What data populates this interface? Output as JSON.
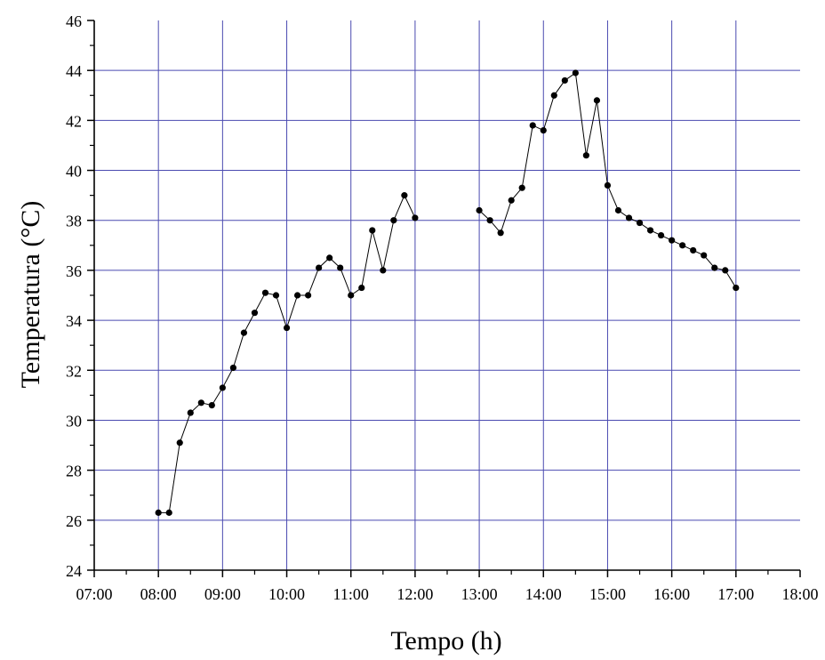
{
  "chart_data": {
    "type": "line",
    "xlabel": "Tempo (h)",
    "ylabel": "Temperatura (°C)",
    "xlim": [
      "07:00",
      "18:00"
    ],
    "ylim": [
      24,
      46
    ],
    "x_ticks": [
      "07:00",
      "08:00",
      "09:00",
      "10:00",
      "11:00",
      "12:00",
      "13:00",
      "14:00",
      "15:00",
      "16:00",
      "17:00",
      "18:00"
    ],
    "y_ticks": [
      "24",
      "26",
      "28",
      "30",
      "32",
      "34",
      "36",
      "38",
      "40",
      "42",
      "44",
      "46"
    ],
    "grid": true,
    "grid_color": "#4a4ab0",
    "line_color": "#000000",
    "marker": "filled-circle",
    "series": [
      {
        "segments": [
          [
            [
              "08:00",
              26.3
            ],
            [
              "08:10",
              26.3
            ],
            [
              "08:20",
              29.1
            ],
            [
              "08:30",
              30.3
            ],
            [
              "08:40",
              30.7
            ],
            [
              "08:50",
              30.6
            ],
            [
              "09:00",
              31.3
            ],
            [
              "09:10",
              32.1
            ],
            [
              "09:20",
              33.5
            ],
            [
              "09:30",
              34.3
            ],
            [
              "09:40",
              35.1
            ],
            [
              "09:50",
              35.0
            ],
            [
              "10:00",
              33.7
            ],
            [
              "10:10",
              35.0
            ],
            [
              "10:20",
              35.0
            ],
            [
              "10:30",
              36.1
            ],
            [
              "10:40",
              36.5
            ],
            [
              "10:50",
              36.1
            ],
            [
              "11:00",
              35.0
            ],
            [
              "11:10",
              35.3
            ],
            [
              "11:20",
              37.6
            ],
            [
              "11:30",
              36.0
            ],
            [
              "11:40",
              38.0
            ],
            [
              "11:50",
              39.0
            ],
            [
              "12:00",
              38.1
            ]
          ],
          [
            [
              "13:00",
              38.4
            ],
            [
              "13:10",
              38.0
            ],
            [
              "13:20",
              37.5
            ],
            [
              "13:30",
              38.8
            ],
            [
              "13:40",
              39.3
            ],
            [
              "13:50",
              41.8
            ],
            [
              "14:00",
              41.6
            ],
            [
              "14:10",
              43.0
            ],
            [
              "14:20",
              43.6
            ],
            [
              "14:30",
              43.9
            ],
            [
              "14:40",
              40.6
            ],
            [
              "14:50",
              42.8
            ],
            [
              "15:00",
              39.4
            ],
            [
              "15:10",
              38.4
            ],
            [
              "15:20",
              38.1
            ],
            [
              "15:30",
              37.9
            ],
            [
              "15:40",
              37.6
            ],
            [
              "15:50",
              37.4
            ],
            [
              "16:00",
              37.2
            ],
            [
              "16:10",
              37.0
            ],
            [
              "16:20",
              36.8
            ],
            [
              "16:30",
              36.6
            ],
            [
              "16:40",
              36.1
            ],
            [
              "16:50",
              36.0
            ],
            [
              "17:00",
              35.3
            ]
          ]
        ]
      }
    ]
  }
}
